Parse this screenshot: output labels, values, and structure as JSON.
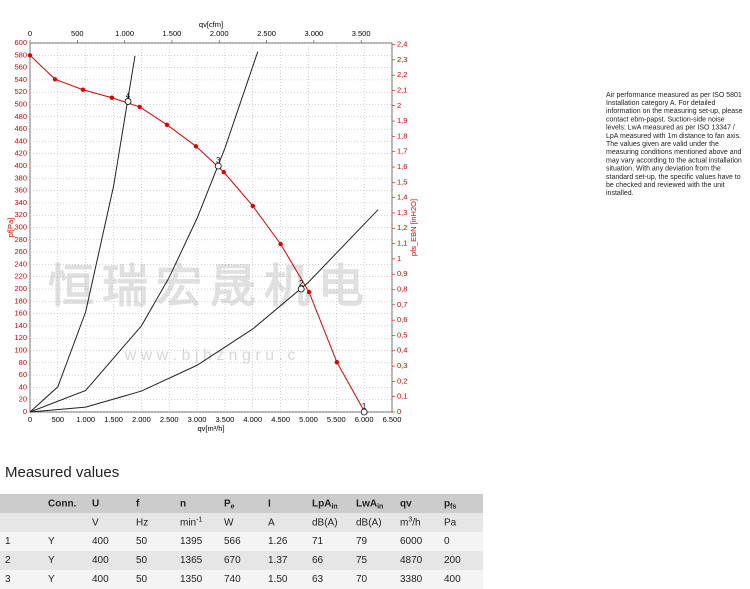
{
  "chart_data": {
    "type": "line",
    "xlabel": "qv[m³/h]",
    "x2label": "qv[cfm]",
    "ylabel": "pf[Pa]",
    "y2label": "pfs_EBN [inH2O]",
    "xlim": [
      0,
      6500
    ],
    "x2lim": [
      0,
      3826
    ],
    "ylim": [
      0,
      600
    ],
    "y2lim": [
      0,
      2.41
    ],
    "grid": true,
    "xticks": [
      0,
      500,
      {
        "value": 1000,
        "label": "1.000"
      },
      {
        "value": 1500,
        "label": "1.500"
      },
      {
        "value": 2000,
        "label": "2.000"
      },
      {
        "value": 2500,
        "label": "2.500"
      },
      {
        "value": 3000,
        "label": "3.000"
      },
      {
        "value": 3500,
        "label": "3.500"
      },
      {
        "value": 4000,
        "label": "4.000"
      },
      {
        "value": 4500,
        "label": "4.500"
      },
      {
        "value": 5000,
        "label": "5.000"
      },
      {
        "value": 5500,
        "label": "5.500"
      },
      {
        "value": 6000,
        "label": "6.000"
      },
      {
        "value": 6500,
        "label": "6.500"
      }
    ],
    "x2ticks": [
      0,
      500,
      {
        "value": 1000,
        "label": "1.000"
      },
      {
        "value": 1500,
        "label": "1.500"
      },
      {
        "value": 2000,
        "label": "2.000"
      },
      {
        "value": 2500,
        "label": "2.500"
      },
      {
        "value": 3000,
        "label": "3.000"
      },
      {
        "value": 3500,
        "label": "3.500"
      }
    ],
    "yticks": [
      0,
      20,
      40,
      60,
      80,
      100,
      120,
      140,
      160,
      180,
      200,
      220,
      240,
      260,
      280,
      300,
      320,
      340,
      360,
      380,
      400,
      420,
      440,
      460,
      480,
      500,
      520,
      540,
      560,
      580,
      600
    ],
    "y2ticks": [
      0,
      {
        "value": 0.1,
        "label": "0,1"
      },
      {
        "value": 0.2,
        "label": "0,2"
      },
      {
        "value": 0.3,
        "label": "0,3"
      },
      {
        "value": 0.4,
        "label": "0,4"
      },
      {
        "value": 0.5,
        "label": "0,5"
      },
      {
        "value": 0.6,
        "label": "0,6"
      },
      {
        "value": 0.7,
        "label": "0,7"
      },
      {
        "value": 0.8,
        "label": "0,8"
      },
      {
        "value": 0.9,
        "label": "0,9"
      },
      1,
      {
        "value": 1.1,
        "label": "1,1"
      },
      {
        "value": 1.2,
        "label": "1,2"
      },
      {
        "value": 1.3,
        "label": "1,3"
      },
      {
        "value": 1.4,
        "label": "1,4"
      },
      {
        "value": 1.5,
        "label": "1,5"
      },
      {
        "value": 1.6,
        "label": "1,6"
      },
      {
        "value": 1.7,
        "label": "1,7"
      },
      {
        "value": 1.8,
        "label": "1,8"
      },
      {
        "value": 1.9,
        "label": "1,9"
      },
      2,
      {
        "value": 2.1,
        "label": "2,1"
      },
      {
        "value": 2.2,
        "label": "2,2"
      },
      {
        "value": 2.3,
        "label": "2,3"
      },
      {
        "value": 2.4,
        "label": "2,4"
      }
    ],
    "series": [
      {
        "color": "#dd0000",
        "markers": true,
        "x": [
          0,
          450,
          950,
          1470,
          1970,
          2460,
          2980,
          3480,
          4000,
          4500,
          5010,
          5510,
          6010
        ],
        "values": [
          580,
          541,
          524,
          511,
          496,
          467,
          432,
          390,
          335,
          273,
          195,
          81,
          0
        ]
      },
      {
        "color": "#222222",
        "markers": false,
        "x": [
          0,
          500,
          1000,
          1500,
          1885
        ],
        "values": [
          0,
          41,
          163,
          367,
          579
        ]
      },
      {
        "color": "#222222",
        "markers": false,
        "x": [
          0,
          1000,
          2000,
          2500,
          3000,
          3500,
          4090
        ],
        "values": [
          0,
          35,
          140,
          219,
          315,
          429,
          586
        ]
      },
      {
        "color": "#222222",
        "markers": false,
        "x": [
          0,
          1000,
          2000,
          3000,
          4000,
          5000,
          6250
        ],
        "values": [
          0,
          8,
          34,
          76,
          135,
          211,
          329
        ]
      }
    ],
    "operating_points": {
      "labels": [
        "1",
        "2",
        "3",
        "4"
      ],
      "x": [
        6000,
        4870,
        3380,
        1760
      ],
      "values": [
        0,
        200,
        400,
        505
      ]
    },
    "watermark": [
      "恒瑞宏晟机电",
      "w w w . b j h z n g r u . c"
    ]
  },
  "note": [
    "Air performance measured as per ISO 5801",
    "Installation category A. For detailed",
    "information on the measuring set-up, please",
    "contact ebm-papst. Suction-side noise",
    "levels: LwA measured as per ISO 13347 /",
    "LpA measured with 1m distance to fan axis.",
    "The values given are valid under the",
    "measuring conditions mentioned above and",
    "may vary according to the actual installation",
    "situation. With any deviation from the",
    "standard set-up, the specific values have to",
    "be checked and reviewed with the unit",
    "installed."
  ],
  "table": {
    "title": "Measured values",
    "header": [
      {
        "main": "Conn."
      },
      {
        "main": "U"
      },
      {
        "main": "f"
      },
      {
        "main": "n"
      },
      {
        "main": "P",
        "sub": "e"
      },
      {
        "main": "I"
      },
      {
        "main": "LpA",
        "sub": "in"
      },
      {
        "main": "LwA",
        "sub": "in"
      },
      {
        "main": "qv"
      },
      {
        "main": "p",
        "sub": "fs"
      }
    ],
    "units": [
      {
        "main": "V"
      },
      {
        "main": "Hz"
      },
      {
        "main": "min",
        "sup": "-1"
      },
      {
        "main": "W"
      },
      {
        "main": "A"
      },
      {
        "main": "dB(A)"
      },
      {
        "main": "dB(A)"
      },
      {
        "main": "m",
        "sup": "3",
        "rest": "/h"
      },
      {
        "main": "Pa"
      }
    ],
    "rows": [
      [
        "1",
        "Y",
        "400",
        "50",
        "1395",
        "566",
        "1.26",
        "71",
        "79",
        "6000",
        "0"
      ],
      [
        "2",
        "Y",
        "400",
        "50",
        "1365",
        "670",
        "1.37",
        "66",
        "75",
        "4870",
        "200"
      ],
      [
        "3",
        "Y",
        "400",
        "50",
        "1350",
        "740",
        "1.50",
        "63",
        "70",
        "3380",
        "400"
      ]
    ]
  }
}
